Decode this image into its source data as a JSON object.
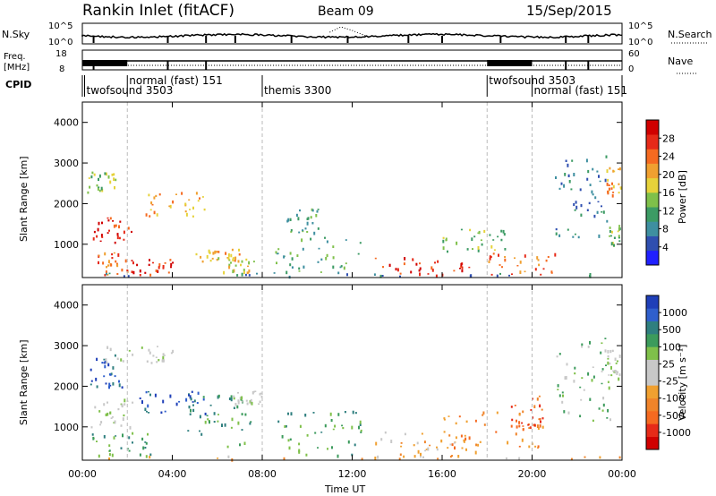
{
  "header": {
    "title": "Rankin Inlet (fitACF)",
    "beam": "Beam 09",
    "date": "15/Sep/2015"
  },
  "noise_panel": {
    "left_label": "N.Sky",
    "right_label": "N.Search",
    "left_ticks": [
      "10^5",
      "10^0"
    ],
    "right_ticks": [
      "10^5",
      "10^0"
    ]
  },
  "freq_panel": {
    "left_label": "Freq.",
    "left_unit": "[MHz]",
    "right_label": "Nave",
    "left_ticks": [
      "18",
      "8"
    ],
    "right_ticks": [
      "60",
      "0"
    ]
  },
  "cpid": {
    "label": "CPID",
    "segments": [
      {
        "name": "twofsound 3503",
        "start": 0.1,
        "row": "bottom"
      },
      {
        "name": "normal (fast) 151",
        "start": 2.0,
        "row": "top"
      },
      {
        "name": "themis 3300",
        "start": 8.0,
        "row": "bottom"
      },
      {
        "name": "twofsound 3503",
        "start": 18.0,
        "row": "top"
      },
      {
        "name": "normal (fast) 151",
        "start": 20.0,
        "row": "bottom"
      }
    ]
  },
  "x_axis": {
    "label": "Time UT",
    "range": [
      0,
      24
    ],
    "ticks": [
      0,
      4,
      8,
      12,
      16,
      20,
      24
    ],
    "tick_labels": [
      "00:00",
      "04:00",
      "08:00",
      "12:00",
      "16:00",
      "20:00",
      "00:00"
    ]
  },
  "colorbars": {
    "power": {
      "label": "Power [dB]",
      "colors": [
        "#2020ff",
        "#2f4fb0",
        "#3e8fa0",
        "#3c9b64",
        "#7fc04a",
        "#e6d23a",
        "#f0a030",
        "#f56a20",
        "#e62a18",
        "#d00000"
      ],
      "tick_labels": [
        "4",
        "8",
        "12",
        "16",
        "20",
        "24",
        "28"
      ]
    },
    "velocity": {
      "label": "Velocity [m s⁻¹]",
      "colors": [
        "#1f3fb8",
        "#2f5fcc",
        "#2f7f7f",
        "#3c9b5c",
        "#7fc04a",
        "#c8c8c8",
        "#c8c8c8",
        "#f0a030",
        "#f0842a",
        "#f56a20",
        "#e62a18",
        "#d00000"
      ],
      "tick_labels": [
        "1000",
        "500",
        "100",
        "25",
        "-25",
        "-100",
        "-500",
        "-1000"
      ]
    }
  },
  "chart_data": [
    {
      "type": "heatmap",
      "name": "power",
      "ylabel": "Slant Range [km]",
      "xlim": [
        0,
        24
      ],
      "ylim": [
        180,
        4500
      ],
      "y_ticks": [
        1000,
        2000,
        3000,
        4000
      ],
      "colorbar_label": "Power [dB]",
      "regions": [
        {
          "t": [
            0.3,
            2.2
          ],
          "r": [
            1000,
            1700
          ],
          "level": 8
        },
        {
          "t": [
            0.5,
            2.0
          ],
          "r": [
            200,
            900
          ],
          "level": 7
        },
        {
          "t": [
            2.0,
            4.0
          ],
          "r": [
            250,
            650
          ],
          "level": 8
        },
        {
          "t": [
            2.8,
            5.5
          ],
          "r": [
            1700,
            2300
          ],
          "level": 6
        },
        {
          "t": [
            5.0,
            7.0
          ],
          "r": [
            600,
            900
          ],
          "level": 6
        },
        {
          "t": [
            6.0,
            7.6
          ],
          "r": [
            250,
            700
          ],
          "level": 5
        },
        {
          "t": [
            0.2,
            1.5
          ],
          "r": [
            2300,
            2800
          ],
          "level": 4
        },
        {
          "t": [
            8.5,
            12.5
          ],
          "r": [
            300,
            1200
          ],
          "level": 3
        },
        {
          "t": [
            9.0,
            10.5
          ],
          "r": [
            1300,
            1900
          ],
          "level": 3
        },
        {
          "t": [
            13.0,
            17.5
          ],
          "r": [
            250,
            700
          ],
          "level": 8
        },
        {
          "t": [
            16.0,
            19.0
          ],
          "r": [
            800,
            1400
          ],
          "level": 4
        },
        {
          "t": [
            18.0,
            21.0
          ],
          "r": [
            250,
            800
          ],
          "level": 7
        },
        {
          "t": [
            21.0,
            23.5
          ],
          "r": [
            1000,
            3200
          ],
          "level": 2
        },
        {
          "t": [
            23.3,
            24.0
          ],
          "r": [
            2200,
            2900
          ],
          "level": 6
        },
        {
          "t": [
            23.4,
            24.0
          ],
          "r": [
            1000,
            1500
          ],
          "level": 4
        },
        {
          "t": [
            0.0,
            24.0
          ],
          "r": [
            180,
            300
          ],
          "level": 2
        }
      ]
    },
    {
      "type": "heatmap",
      "name": "velocity",
      "ylabel": "Slant Range [km]",
      "xlim": [
        0,
        24
      ],
      "ylim": [
        180,
        4500
      ],
      "y_ticks": [
        1000,
        2000,
        3000,
        4000
      ],
      "colorbar_label": "Velocity [m s⁻¹]",
      "regions": [
        {
          "t": [
            0.3,
            2.2
          ],
          "r": [
            1000,
            1700
          ],
          "level": 5
        },
        {
          "t": [
            0.2,
            1.8
          ],
          "r": [
            2000,
            2800
          ],
          "level": 1
        },
        {
          "t": [
            1.0,
            4.0
          ],
          "r": [
            2600,
            3000
          ],
          "level": 5
        },
        {
          "t": [
            0.3,
            3.0
          ],
          "r": [
            300,
            900
          ],
          "level": 3
        },
        {
          "t": [
            2.5,
            5.5
          ],
          "r": [
            1300,
            1900
          ],
          "level": 1
        },
        {
          "t": [
            4.5,
            7.5
          ],
          "r": [
            500,
            1800
          ],
          "level": 3
        },
        {
          "t": [
            6.5,
            8.0
          ],
          "r": [
            1500,
            1900
          ],
          "level": 5
        },
        {
          "t": [
            8.5,
            12.5
          ],
          "r": [
            300,
            1400
          ],
          "level": 3
        },
        {
          "t": [
            13.0,
            17.5
          ],
          "r": [
            250,
            900
          ],
          "level": 7
        },
        {
          "t": [
            16.0,
            20.5
          ],
          "r": [
            500,
            1400
          ],
          "level": 8
        },
        {
          "t": [
            19.0,
            20.5
          ],
          "r": [
            900,
            1800
          ],
          "level": 9
        },
        {
          "t": [
            21.0,
            23.5
          ],
          "r": [
            1000,
            3200
          ],
          "level": 4
        },
        {
          "t": [
            23.3,
            24.0
          ],
          "r": [
            2200,
            2900
          ],
          "level": 5
        },
        {
          "t": [
            0.0,
            24.0
          ],
          "r": [
            180,
            300
          ],
          "level": 7
        }
      ]
    }
  ]
}
